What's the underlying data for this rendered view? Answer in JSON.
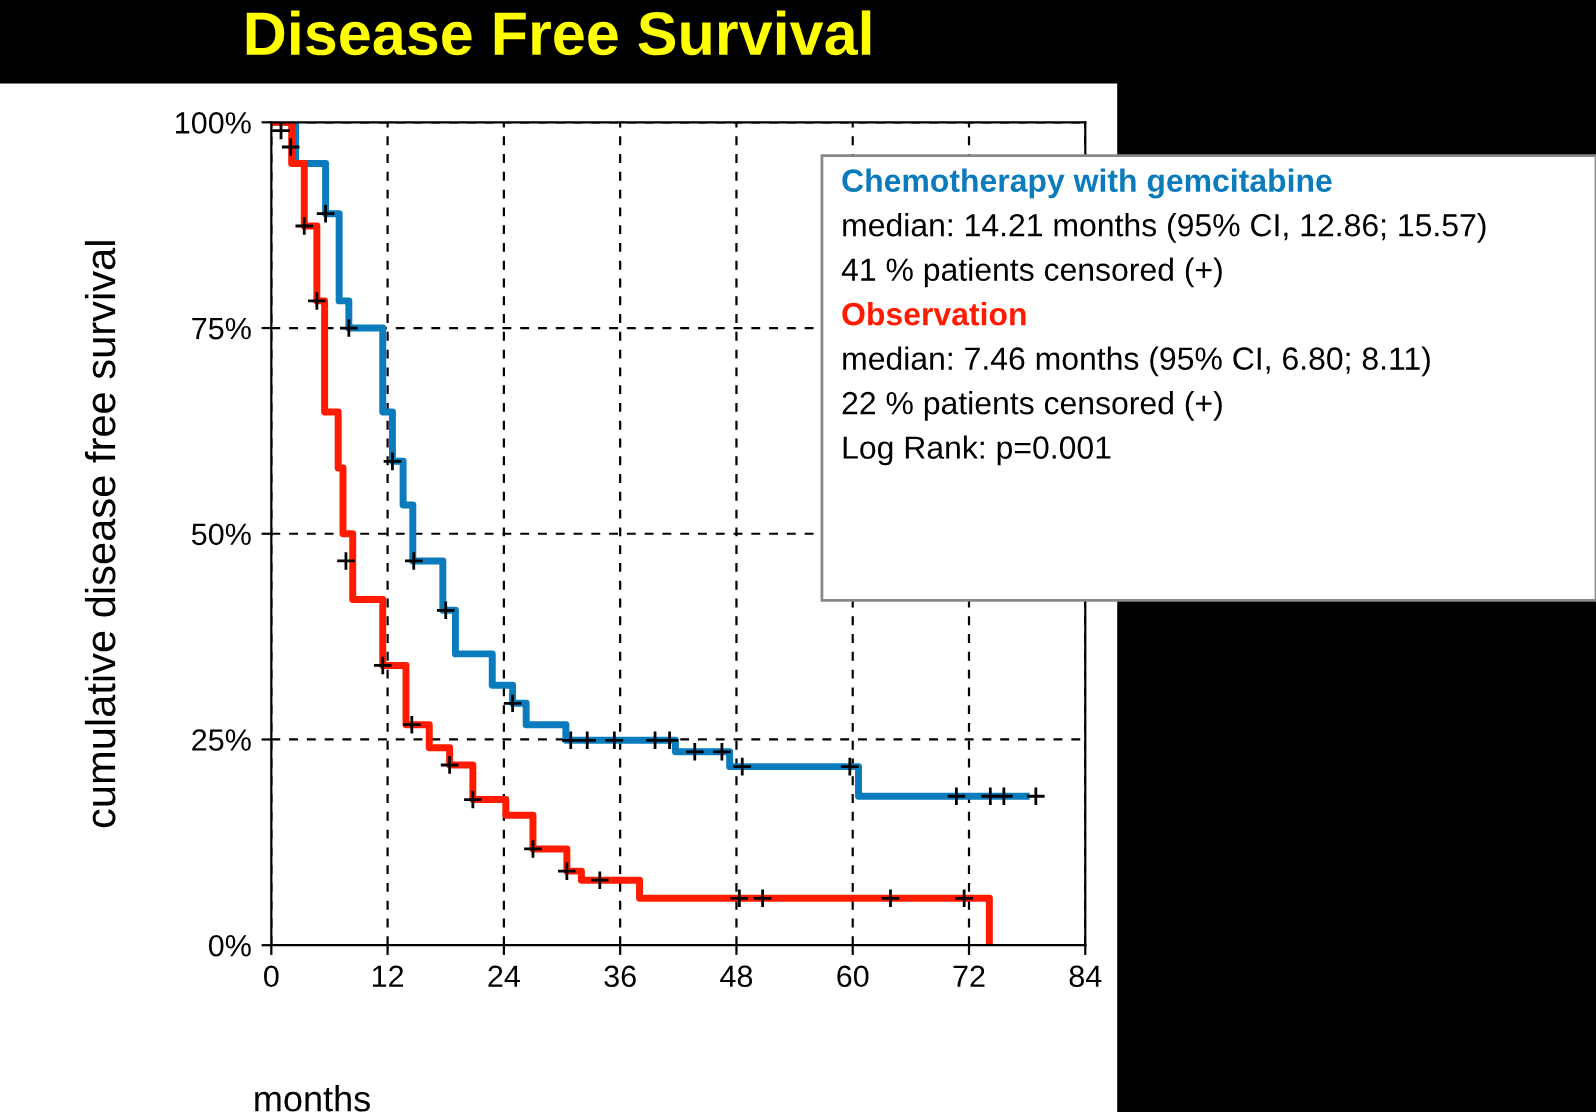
{
  "chart_data": {
    "type": "step",
    "title": "Disease Free Survival",
    "xlabel": "months",
    "ylabel": "cumulative disease free survival",
    "xlim": [
      0,
      84
    ],
    "xticks": [
      0,
      12,
      24,
      36,
      48,
      60,
      72,
      84
    ],
    "ylim": [
      0,
      100
    ],
    "yticks": [
      {
        "value": 0,
        "label": "0%"
      },
      {
        "value": 25,
        "label": "25%"
      },
      {
        "value": 50,
        "label": "50%"
      },
      {
        "value": 75,
        "label": "75%"
      },
      {
        "value": 100,
        "label": "100%"
      }
    ],
    "grid": true,
    "legend": "top right",
    "line_style": "solid",
    "series": [
      {
        "name": "Chemotherapy with gemcitabine",
        "color": "#0a7bbd",
        "x": [
          0,
          2.5,
          5.6,
          7.0,
          8.0,
          11.5,
          12.5,
          13.6,
          14.6,
          17.7,
          19.0,
          22.8,
          24.9,
          26.3,
          30.4,
          41.7,
          47.3,
          60.6,
          77.9
        ],
        "values": [
          100,
          95,
          88.9,
          78.3,
          75,
          64.8,
          58.8,
          53.5,
          46.7,
          40.7,
          35.4,
          31.6,
          29.4,
          26.8,
          24.9,
          23.5,
          21.7,
          18.1,
          18.1
        ]
      },
      {
        "name": "Observation",
        "color": "#ff1a00",
        "x": [
          0,
          2.1,
          3.4,
          4.7,
          5.5,
          6.9,
          7.4,
          8.4,
          11.5,
          13.9,
          16.3,
          18.4,
          20.8,
          24.2,
          27.0,
          30.5,
          32.0,
          38.0,
          74.1
        ],
        "values": [
          100,
          95,
          87.4,
          78.3,
          64.8,
          58,
          50,
          42,
          34,
          26.8,
          24,
          21.9,
          17.7,
          15.8,
          11.7,
          9,
          7.9,
          5.7,
          0
        ]
      },
      {
        "type": "scatter",
        "marker": "cross",
        "color": "#000000",
        "x": [
          1,
          2,
          5.6,
          8,
          12.5,
          14.7,
          18,
          24.9,
          30.9,
          32.6,
          35.4,
          39.6,
          41.1,
          43.7,
          46.5,
          48.6,
          59.7,
          70.7,
          74.2,
          75.6,
          78.9
        ],
        "values": [
          99,
          97,
          88.9,
          75,
          58.8,
          46.7,
          40.7,
          29.4,
          24.9,
          24.9,
          24.9,
          24.9,
          24.9,
          23.5,
          23.5,
          21.7,
          21.7,
          18.1,
          18.1,
          18.1,
          18.1
        ]
      },
      {
        "type": "scatter",
        "marker": "cross",
        "color": "#000000",
        "x": [
          3.4,
          4.7,
          7.7,
          11.5,
          14.5,
          18.4,
          20.8,
          27.0,
          30.5,
          33.9,
          48.3,
          50.7,
          63.9,
          71.5
        ],
        "values": [
          87.4,
          78.3,
          46.7,
          34,
          26.8,
          21.9,
          17.7,
          11.7,
          9,
          7.9,
          5.7,
          5.7,
          5.7,
          5.7
        ]
      }
    ],
    "annotations": [
      "median: 14.21 months (95% CI, 12.86; 15.57)",
      "41 % patients censored (+)",
      "median: 7.46 months (95% CI, 6.80; 8.11)",
      "22 % patients censored (+)",
      "Log Rank: p=0.001"
    ]
  }
}
